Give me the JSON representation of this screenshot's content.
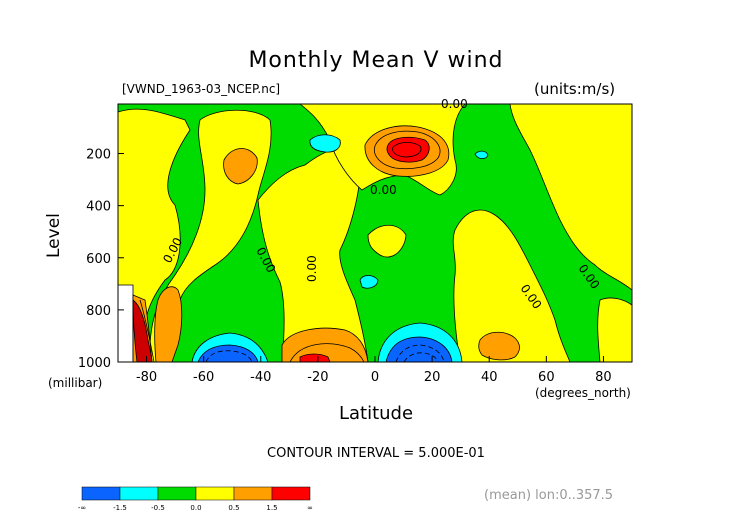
{
  "chart_data": {
    "type": "contour",
    "title": "Monthly Mean V wind",
    "file_label": "[VWND_1963-03_NCEP.nc]",
    "units_label": "(units:m/s)",
    "xlabel": "Latitude",
    "x_unit_label": "(degrees_north)",
    "ylabel": "Level",
    "y_unit_label": "(millibar)",
    "x_ticks": [
      "-80",
      "-60",
      "-40",
      "-20",
      "0",
      "20",
      "40",
      "60",
      "80"
    ],
    "y_ticks": [
      "200",
      "400",
      "600",
      "800",
      "1000"
    ],
    "xlim": [
      -90,
      90
    ],
    "ylim": [
      1000,
      10
    ],
    "contour_labels": [
      "0.00",
      "0.00",
      "0.00",
      "0.00",
      "0.00",
      "0.00",
      "0.00"
    ],
    "contour_interval_label": "CONTOUR INTERVAL = 5.000E-01",
    "colorbar": {
      "labels": [
        "-∞",
        "-1.5",
        "-0.5",
        "0.0",
        "0.5",
        "1.5",
        "∞"
      ],
      "colors": [
        "#0a64ff",
        "#00ffff",
        "#00dc00",
        "#ffff00",
        "#ffa000",
        "#ff0000"
      ]
    },
    "footer_label": "(mean) lon:0..357.5"
  }
}
